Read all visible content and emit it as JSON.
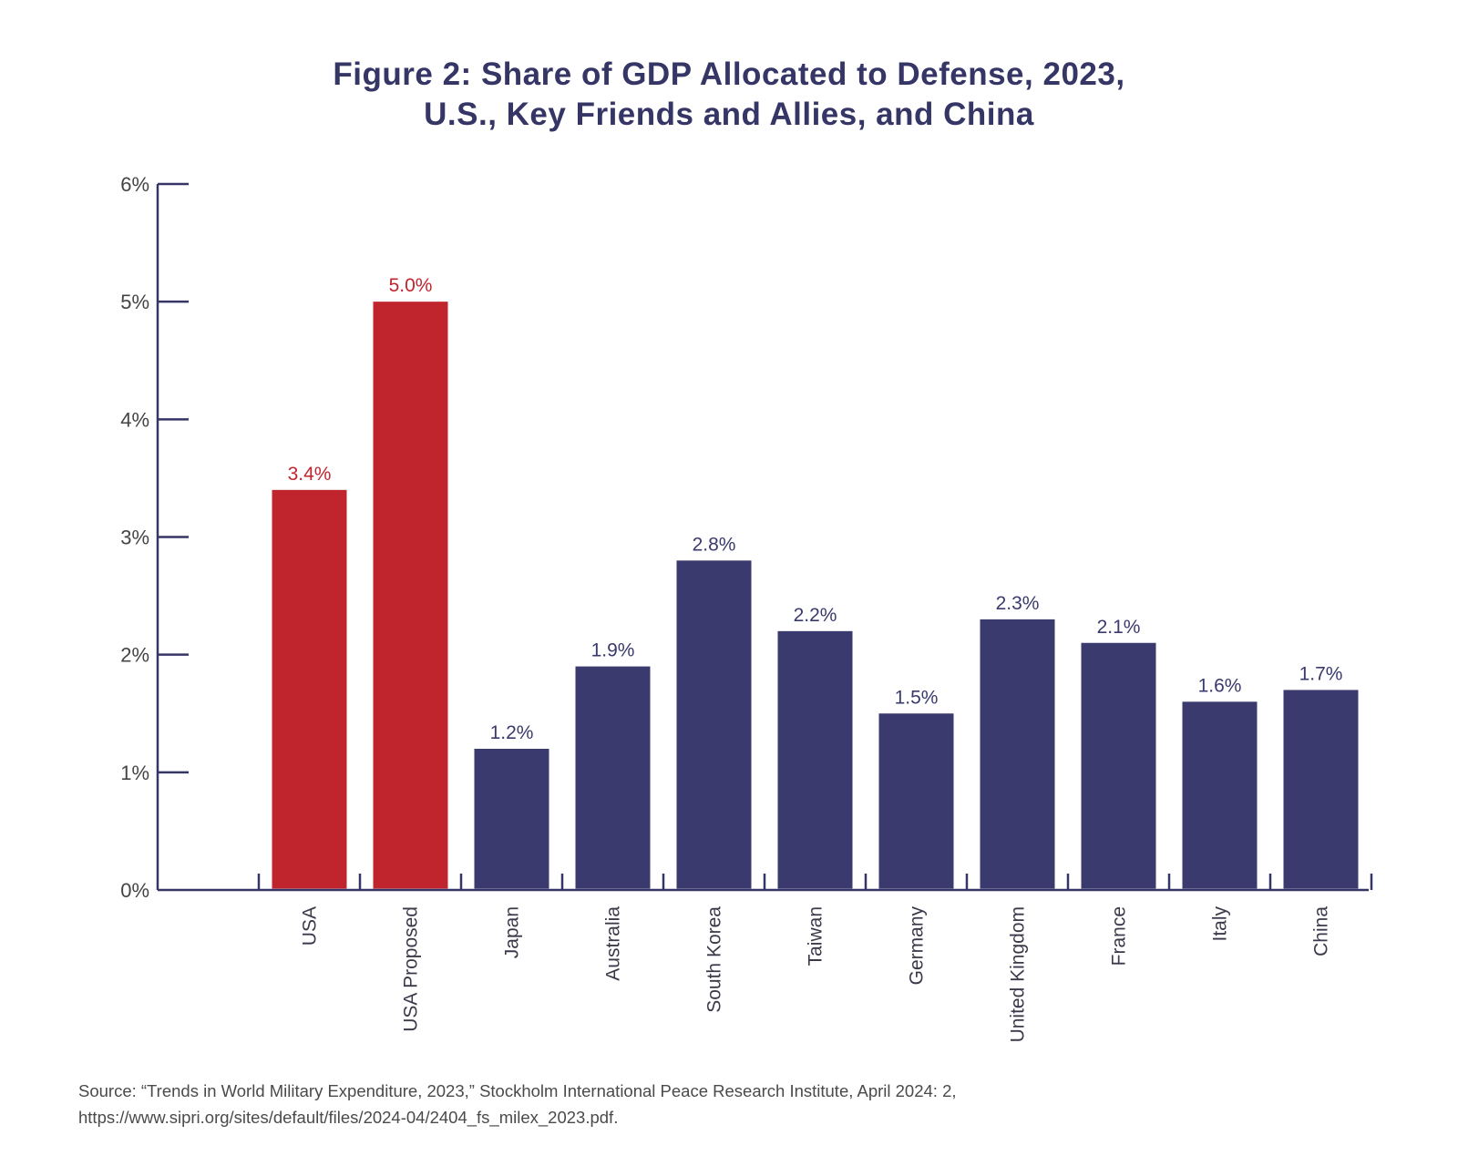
{
  "colors": {
    "highlight": "#c0252e",
    "base": "#3a3a6e",
    "axis": "#353566",
    "title": "#353566",
    "tick_text": "#444444"
  },
  "chart_data": {
    "type": "bar",
    "title": "Figure 2: Share of GDP Allocated to Defense, 2023, U.S., Key Friends and Allies, and China",
    "title_lines": [
      "Figure 2: Share of GDP Allocated to Defense, 2023,",
      "U.S., Key Friends and Allies, and China"
    ],
    "xlabel": "",
    "ylabel": "",
    "ylim": [
      0,
      6
    ],
    "yticks": [
      "0%",
      "1%",
      "2%",
      "3%",
      "4%",
      "5%",
      "6%"
    ],
    "categories": [
      "USA",
      "USA Proposed",
      "Japan",
      "Australia",
      "South Korea",
      "Taiwan",
      "Germany",
      "United Kingdom",
      "France",
      "Italy",
      "China"
    ],
    "values": [
      3.4,
      5.0,
      1.2,
      1.9,
      2.8,
      2.2,
      1.5,
      2.3,
      2.1,
      1.6,
      1.7
    ],
    "value_labels": [
      "3.4%",
      "5.0%",
      "1.2%",
      "1.9%",
      "2.8%",
      "2.2%",
      "1.5%",
      "2.3%",
      "2.1%",
      "1.6%",
      "1.7%"
    ],
    "highlighted": [
      "USA",
      "USA Proposed"
    ],
    "grid": false,
    "legend": "none"
  },
  "source": {
    "line1": "Source: “Trends in World Military Expenditure, 2023,” Stockholm International Peace Research Institute, April 2024: 2,",
    "line2": "https://www.sipri.org/sites/default/files/2024-04/2404_fs_milex_2023.pdf."
  }
}
